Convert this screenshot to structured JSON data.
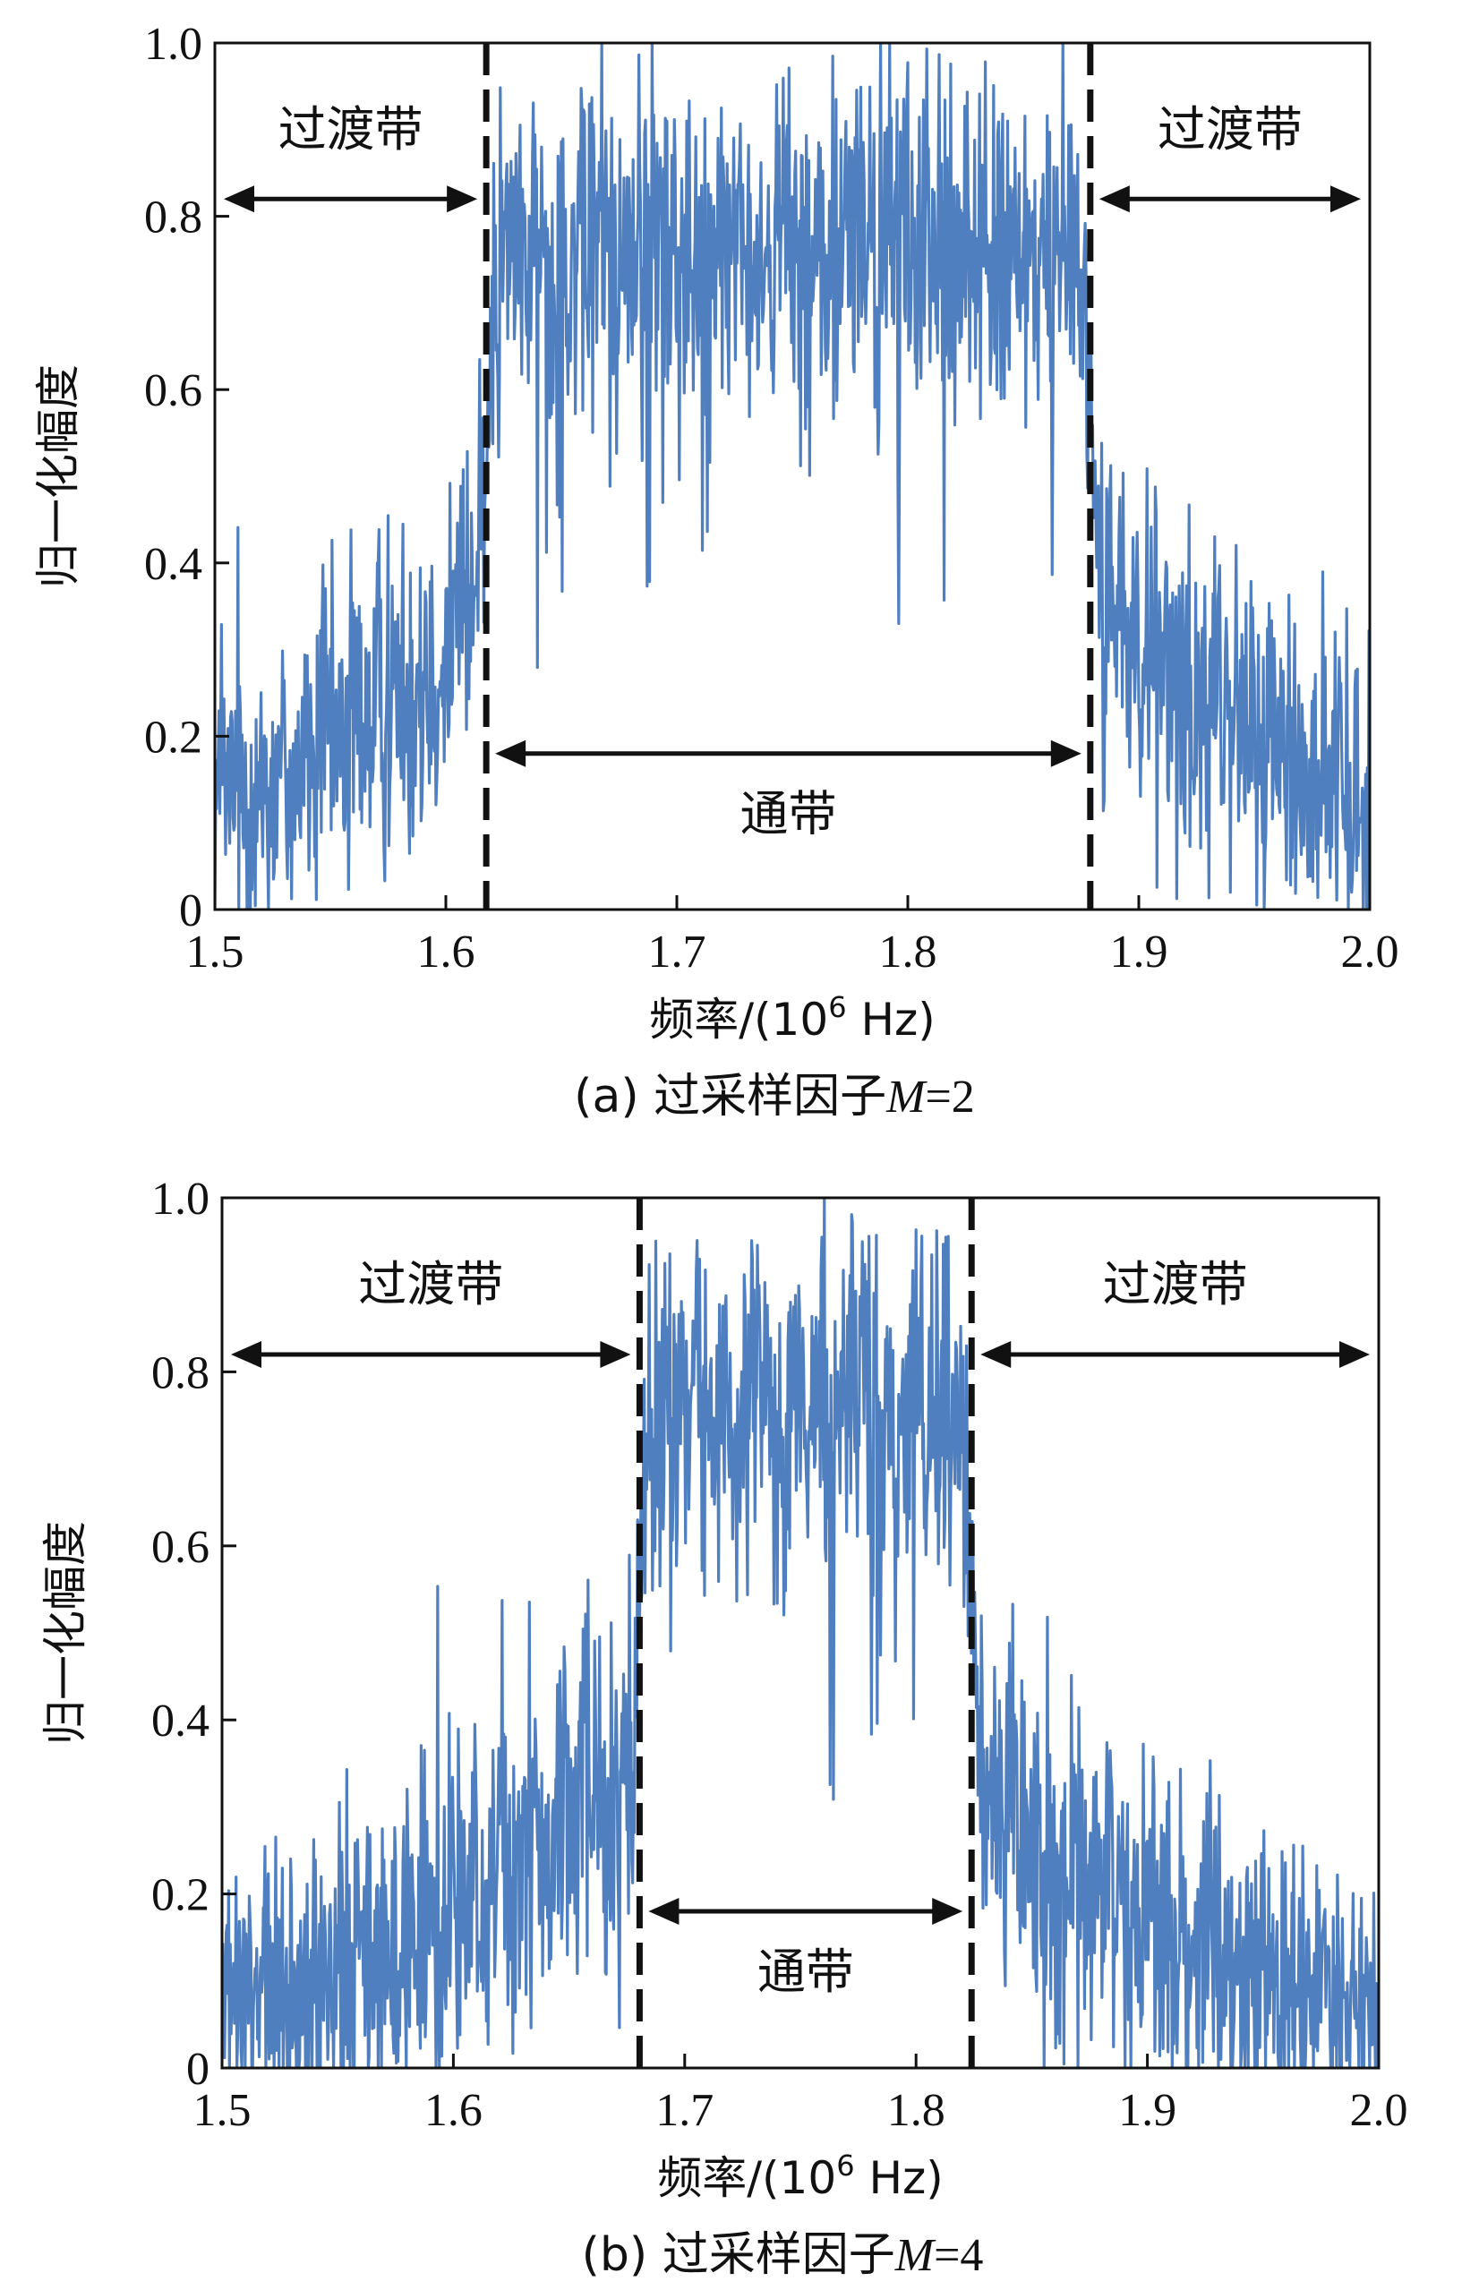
{
  "figure": {
    "panels": [
      {
        "caption_prefix": "(a) 过采样因子",
        "caption_var": "M",
        "caption_suffix": "=2",
        "transition_label": "过渡带",
        "passband_label": "通带"
      },
      {
        "caption_prefix": "(b) 过采样因子",
        "caption_var": "M",
        "caption_suffix": "=4",
        "transition_label": "过渡带",
        "passband_label": "通带"
      }
    ]
  },
  "chart_data": [
    {
      "type": "line",
      "title": "(a) 过采样因子M=2",
      "xlabel_main": "频率/(10",
      "xlabel_sup": "6",
      "xlabel_tail": " Hz)",
      "ylabel": "归一化幅度",
      "xlim": [
        1.5,
        2.0
      ],
      "ylim": [
        0,
        1.0
      ],
      "xticks": [
        1.5,
        1.6,
        1.7,
        1.8,
        1.9,
        2.0
      ],
      "xtick_labels": [
        "1.5",
        "1.6",
        "1.7",
        "1.8",
        "1.9",
        "2.0"
      ],
      "yticks": [
        0,
        0.2,
        0.4,
        0.6,
        0.8,
        1.0
      ],
      "ytick_labels": [
        "0",
        "0.2",
        "0.4",
        "0.6",
        "0.8",
        "1.0"
      ],
      "series_color": "#4f7fbf",
      "passband": [
        1.6175,
        1.879
      ],
      "envelope": {
        "stopband_left_start": 0.13,
        "stopband_left_end": 0.36,
        "passband_level": 0.76,
        "stopband_right_start": 0.38,
        "stopband_right_end": 0.13
      },
      "annotations": {
        "transition_left_arrow": {
          "x": [
            1.5,
            1.6175
          ],
          "y": 0.82,
          "label_y": 0.9
        },
        "transition_right_arrow": {
          "x": [
            1.879,
            2.0
          ],
          "y": 0.82,
          "label_y": 0.9
        },
        "passband_arrow": {
          "x": [
            1.6175,
            1.879
          ],
          "y": 0.18,
          "label_y": 0.11
        }
      }
    },
    {
      "type": "line",
      "title": "(b) 过采样因子M=4",
      "xlabel_main": "频率/(10",
      "xlabel_sup": "6",
      "xlabel_tail": " Hz)",
      "ylabel": "归一化幅度",
      "xlim": [
        1.5,
        2.0
      ],
      "ylim": [
        0,
        1.0
      ],
      "xticks": [
        1.5,
        1.6,
        1.7,
        1.8,
        1.9,
        2.0
      ],
      "xtick_labels": [
        "1.5",
        "1.6",
        "1.7",
        "1.8",
        "1.9",
        "2.0"
      ],
      "yticks": [
        0,
        0.2,
        0.4,
        0.6,
        0.8,
        1.0
      ],
      "ytick_labels": [
        "0",
        "0.2",
        "0.4",
        "0.6",
        "0.8",
        "1.0"
      ],
      "series_color": "#4f7fbf",
      "passband": [
        1.6805,
        1.824
      ],
      "envelope": {
        "stopband_left_start": 0.07,
        "stopband_left_end": 0.34,
        "passband_level": 0.76,
        "stopband_right_start": 0.32,
        "stopband_right_end": 0.06
      },
      "annotations": {
        "transition_left_arrow": {
          "x": [
            1.5,
            1.6805
          ],
          "y": 0.82,
          "label_y": 0.9
        },
        "transition_right_arrow": {
          "x": [
            1.824,
            2.0
          ],
          "y": 0.82,
          "label_y": 0.9
        },
        "passband_arrow": {
          "x": [
            1.6805,
            1.824
          ],
          "y": 0.18,
          "label_y": 0.11
        }
      }
    }
  ]
}
